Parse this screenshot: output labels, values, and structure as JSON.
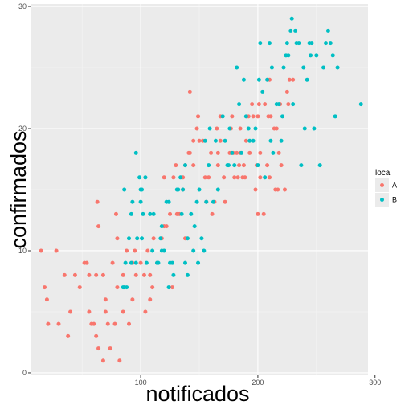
{
  "chart_data": {
    "type": "scatter",
    "xlabel": "notificados",
    "ylabel": "confirmados",
    "xlim": [
      6,
      294
    ],
    "ylim": [
      -0.2,
      30.2
    ],
    "xticks": [
      100,
      200,
      300
    ],
    "yticks": [
      0,
      10,
      20,
      30
    ],
    "grid": true,
    "legend": {
      "title": "local",
      "position": "right"
    },
    "series": [
      {
        "name": "A",
        "color": "#F8766D",
        "points": [
          [
            15,
            10
          ],
          [
            18,
            7
          ],
          [
            21,
            4
          ],
          [
            20,
            6
          ],
          [
            28,
            10
          ],
          [
            30,
            4
          ],
          [
            35,
            8
          ],
          [
            38,
            3
          ],
          [
            40,
            5
          ],
          [
            44,
            8
          ],
          [
            48,
            7
          ],
          [
            52,
            9
          ],
          [
            54,
            9
          ],
          [
            56,
            8
          ],
          [
            56,
            5
          ],
          [
            58,
            4
          ],
          [
            60,
            4
          ],
          [
            62,
            8
          ],
          [
            62,
            3
          ],
          [
            64,
            2
          ],
          [
            64,
            12
          ],
          [
            63,
            14
          ],
          [
            68,
            8
          ],
          [
            68,
            1
          ],
          [
            70,
            6
          ],
          [
            70,
            5
          ],
          [
            72,
            4
          ],
          [
            74,
            2
          ],
          [
            76,
            9
          ],
          [
            78,
            4
          ],
          [
            79,
            13
          ],
          [
            80,
            11
          ],
          [
            80,
            7
          ],
          [
            82,
            1
          ],
          [
            85,
            5
          ],
          [
            85,
            8
          ],
          [
            88,
            10
          ],
          [
            90,
            4
          ],
          [
            93,
            9
          ],
          [
            93,
            6
          ],
          [
            95,
            10
          ],
          [
            96,
            8
          ],
          [
            100,
            9
          ],
          [
            103,
            8
          ],
          [
            104,
            5
          ],
          [
            106,
            10
          ],
          [
            108,
            6
          ],
          [
            108,
            8
          ],
          [
            110,
            7
          ],
          [
            111,
            11
          ],
          [
            114,
            9
          ],
          [
            118,
            11
          ],
          [
            120,
            12
          ],
          [
            120,
            16
          ],
          [
            122,
            12
          ],
          [
            125,
            13
          ],
          [
            127,
            7
          ],
          [
            128,
            16
          ],
          [
            130,
            17
          ],
          [
            131,
            13
          ],
          [
            133,
            13
          ],
          [
            136,
            16
          ],
          [
            136,
            15
          ],
          [
            138,
            17
          ],
          [
            138,
            11
          ],
          [
            141,
            18
          ],
          [
            142,
            18
          ],
          [
            142,
            23
          ],
          [
            145,
            19
          ],
          [
            145,
            17
          ],
          [
            148,
            20
          ],
          [
            149,
            21
          ],
          [
            150,
            19
          ],
          [
            153,
            19
          ],
          [
            155,
            16
          ],
          [
            156,
            14
          ],
          [
            158,
            16
          ],
          [
            160,
            18
          ],
          [
            161,
            13
          ],
          [
            163,
            14
          ],
          [
            165,
            20
          ],
          [
            166,
            18
          ],
          [
            166,
            17
          ],
          [
            168,
            19
          ],
          [
            168,
            21
          ],
          [
            171,
            16
          ],
          [
            172,
            14
          ],
          [
            176,
            18
          ],
          [
            177,
            20
          ],
          [
            178,
            21
          ],
          [
            179,
            18
          ],
          [
            180,
            16
          ],
          [
            182,
            18
          ],
          [
            183,
            16
          ],
          [
            184,
            17
          ],
          [
            185,
            20
          ],
          [
            185,
            18
          ],
          [
            187,
            16
          ],
          [
            188,
            17
          ],
          [
            189,
            16
          ],
          [
            190,
            19
          ],
          [
            192,
            21
          ],
          [
            193,
            18
          ],
          [
            195,
            22
          ],
          [
            196,
            21
          ],
          [
            198,
            15
          ],
          [
            199,
            17
          ],
          [
            200,
            13
          ],
          [
            200,
            21
          ],
          [
            201,
            22
          ],
          [
            202,
            16
          ],
          [
            202,
            18
          ],
          [
            205,
            13
          ],
          [
            206,
            22
          ],
          [
            208,
            17
          ],
          [
            209,
            21
          ],
          [
            210,
            16
          ],
          [
            210,
            24
          ],
          [
            211,
            21
          ],
          [
            214,
            20
          ],
          [
            215,
            15
          ],
          [
            216,
            20
          ],
          [
            217,
            15
          ],
          [
            218,
            18
          ],
          [
            219,
            22
          ],
          [
            220,
            17
          ],
          [
            223,
            15
          ],
          [
            225,
            23
          ],
          [
            226,
            22
          ],
          [
            227,
            24
          ],
          [
            230,
            24
          ]
        ]
      },
      {
        "name": "B",
        "color": "#00BFC4",
        "points": [
          [
            85,
            7
          ],
          [
            86,
            7
          ],
          [
            86,
            15
          ],
          [
            87,
            9
          ],
          [
            88,
            7
          ],
          [
            90,
            11
          ],
          [
            92,
            13
          ],
          [
            92,
            9
          ],
          [
            93,
            14
          ],
          [
            96,
            18
          ],
          [
            96,
            9
          ],
          [
            97,
            11
          ],
          [
            99,
            16
          ],
          [
            100,
            15
          ],
          [
            100,
            14
          ],
          [
            101,
            15
          ],
          [
            101,
            11
          ],
          [
            102,
            13
          ],
          [
            104,
            16
          ],
          [
            105,
            9
          ],
          [
            108,
            13
          ],
          [
            110,
            10
          ],
          [
            111,
            13
          ],
          [
            114,
            9
          ],
          [
            115,
            9
          ],
          [
            117,
            11
          ],
          [
            118,
            10
          ],
          [
            118,
            12
          ],
          [
            120,
            10
          ],
          [
            122,
            14
          ],
          [
            124,
            14
          ],
          [
            124,
            7
          ],
          [
            125,
            9
          ],
          [
            127,
            9
          ],
          [
            128,
            8
          ],
          [
            131,
            15
          ],
          [
            132,
            15
          ],
          [
            134,
            16
          ],
          [
            135,
            13
          ],
          [
            136,
            15
          ],
          [
            138,
            17
          ],
          [
            138,
            9
          ],
          [
            140,
            11
          ],
          [
            140,
            8
          ],
          [
            143,
            13
          ],
          [
            145,
            10
          ],
          [
            146,
            12
          ],
          [
            148,
            14
          ],
          [
            149,
            9
          ],
          [
            150,
            15
          ],
          [
            152,
            11
          ],
          [
            154,
            10
          ],
          [
            155,
            19
          ],
          [
            156,
            14
          ],
          [
            158,
            17
          ],
          [
            159,
            20
          ],
          [
            162,
            14
          ],
          [
            164,
            19
          ],
          [
            166,
            15
          ],
          [
            170,
            21
          ],
          [
            172,
            19
          ],
          [
            174,
            17
          ],
          [
            175,
            17
          ],
          [
            176,
            20
          ],
          [
            178,
            18
          ],
          [
            180,
            17
          ],
          [
            182,
            25
          ],
          [
            184,
            22
          ],
          [
            186,
            18
          ],
          [
            188,
            24
          ],
          [
            190,
            21
          ],
          [
            192,
            20
          ],
          [
            193,
            19
          ],
          [
            196,
            19
          ],
          [
            198,
            20
          ],
          [
            200,
            17
          ],
          [
            201,
            24
          ],
          [
            202,
            27
          ],
          [
            204,
            23
          ],
          [
            206,
            16
          ],
          [
            208,
            24
          ],
          [
            210,
            27
          ],
          [
            211,
            19
          ],
          [
            212,
            25
          ],
          [
            213,
            18
          ],
          [
            216,
            22
          ],
          [
            218,
            22
          ],
          [
            220,
            19
          ],
          [
            221,
            21
          ],
          [
            222,
            25
          ],
          [
            224,
            26
          ],
          [
            225,
            27
          ],
          [
            226,
            26
          ],
          [
            228,
            28
          ],
          [
            229,
            29
          ],
          [
            230,
            22
          ],
          [
            232,
            28
          ],
          [
            233,
            27
          ],
          [
            235,
            27
          ],
          [
            237,
            17
          ],
          [
            239,
            25
          ],
          [
            240,
            20
          ],
          [
            242,
            24
          ],
          [
            244,
            27
          ],
          [
            245,
            26
          ],
          [
            246,
            27
          ],
          [
            248,
            20
          ],
          [
            250,
            26
          ],
          [
            253,
            17
          ],
          [
            256,
            25
          ],
          [
            258,
            27
          ],
          [
            260,
            28
          ],
          [
            262,
            27
          ],
          [
            264,
            26
          ],
          [
            266,
            21
          ],
          [
            268,
            25
          ],
          [
            288,
            22
          ]
        ]
      }
    ]
  }
}
